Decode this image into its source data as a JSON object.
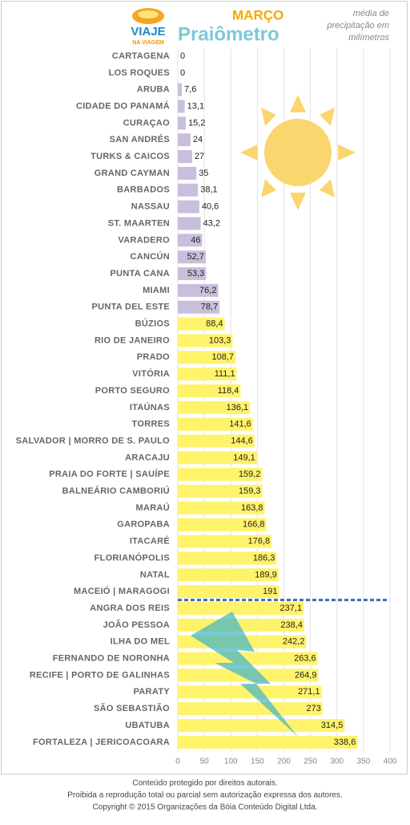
{
  "chart_data": {
    "type": "bar",
    "orientation": "horizontal",
    "logo": [
      "VIAJE",
      "NA VIAGEM"
    ],
    "title": "MARÇO",
    "subtitle": "Praiômetro",
    "note": [
      "média de",
      "precipitação em",
      "milímetros"
    ],
    "categories": [
      "CARTAGENA",
      "LOS ROQUES",
      "ARUBA",
      "CIDADE DO PANAMÁ",
      "CURAÇAO",
      "SAN ANDRÉS",
      "TURKS & CAICOS",
      "GRAND CAYMAN",
      "BARBADOS",
      "NASSAU",
      "ST. MAARTEN",
      "VARADERO",
      "CANCÚN",
      "PUNTA CANA",
      "MIAMI",
      "PUNTA DEL ESTE",
      "BÚZIOS",
      "RIO DE JANEIRO",
      "PRADO",
      "VITÓRIA",
      "PORTO SEGURO",
      "ITAÚNAS",
      "TORRES",
      "SALVADOR | MORRO DE S. PAULO",
      "ARACAJU",
      "PRAIA DO FORTE | SAUÍPE",
      "BALNEÁRIO CAMBORIÚ",
      "MARAÚ",
      "GAROPABA",
      "ITACARÉ",
      "FLORIANÓPOLIS",
      "NATAL",
      "MACEIÓ | MARAGOGI",
      "ANGRA DOS REIS",
      "JOÃO PESSOA",
      "ILHA DO MEL",
      "FERNANDO DE NORONHA",
      "RECIFE | PORTO DE GALINHAS",
      "PARATY",
      "SÃO SEBASTIÃO",
      "UBATUBA",
      "FORTALEZA | JERICOACOARA"
    ],
    "values": [
      0,
      0,
      7.6,
      13.1,
      15.2,
      24,
      27,
      35,
      38.1,
      40.6,
      43.2,
      46,
      52.7,
      53.3,
      76.2,
      78.7,
      88.4,
      103.3,
      108.7,
      111.1,
      118.4,
      136.1,
      141.6,
      144.6,
      149.1,
      159.2,
      159.3,
      163.8,
      166.8,
      176.8,
      186.3,
      189.9,
      191,
      237.1,
      238.4,
      242.2,
      263.6,
      264.9,
      271.1,
      273,
      314.5,
      338.6
    ],
    "value_labels": [
      "0",
      "0",
      "7,6",
      "13,1",
      "15,2",
      "24",
      "27",
      "35",
      "38,1",
      "40,6",
      "43,2",
      "46",
      "52,7",
      "53,3",
      "76,2",
      "78,7",
      "88,4",
      "103,3",
      "108,7",
      "111,1",
      "118,4",
      "136,1",
      "141,6",
      "144,6",
      "149,1",
      "159,2",
      "159,3",
      "163,8",
      "166,8",
      "176,8",
      "186,3",
      "189,9",
      "191",
      "237,1",
      "238,4",
      "242,2",
      "263,6",
      "264,9",
      "271,1",
      "273",
      "314,5",
      "338,6"
    ],
    "colors": [
      "#c9bfdc",
      "#c9bfdc",
      "#c9bfdc",
      "#c9bfdc",
      "#c9bfdc",
      "#c9bfdc",
      "#c9bfdc",
      "#c9bfdc",
      "#c9bfdc",
      "#c9bfdc",
      "#c9bfdc",
      "#c9bfdc",
      "#c9bfdc",
      "#c9bfdc",
      "#c9bfdc",
      "#c9bfdc",
      "#fff36b",
      "#fff36b",
      "#fff36b",
      "#fff36b",
      "#fff36b",
      "#fff36b",
      "#fff36b",
      "#fff36b",
      "#fff36b",
      "#fff36b",
      "#fff36b",
      "#fff36b",
      "#fff36b",
      "#fff36b",
      "#fff36b",
      "#fff36b",
      "#fff36b",
      "#fff36b",
      "#fff36b",
      "#fff36b",
      "#fff36b",
      "#fff36b",
      "#fff36b",
      "#fff36b",
      "#fff36b",
      "#fff36b"
    ],
    "xlim": [
      0,
      400
    ],
    "xticks": [
      0,
      50,
      100,
      150,
      200,
      250,
      300,
      350,
      400
    ],
    "grid": true
  },
  "footer": [
    "Conteúdo protegido por direitos autorais.",
    "Proibida a reprodução total ou parcial sem autorização expressa dos autores.",
    "Copyright © 2015 Organizações da Bóia Conteúdo Digital Ltda."
  ]
}
